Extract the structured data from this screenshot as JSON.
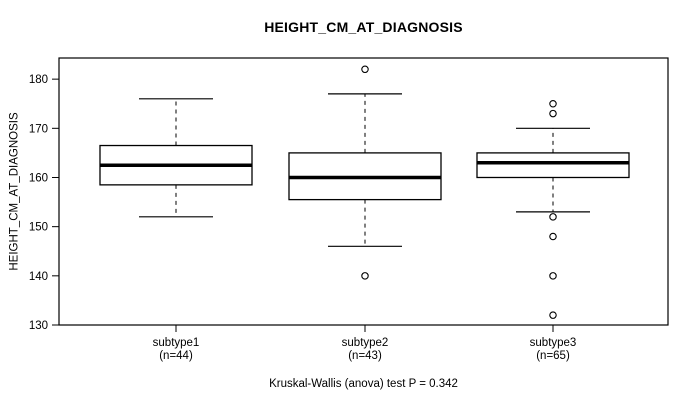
{
  "title": "HEIGHT_CM_AT_DIAGNOSIS",
  "caption": "Kruskal-Wallis (anova) test P = 0.342",
  "y_axis": {
    "label": "HEIGHT_CM_AT_DIAGNOSIS",
    "ticks": [
      130,
      140,
      150,
      160,
      170,
      180
    ]
  },
  "colors": {
    "line": "#000000",
    "box_fill": "#ffffff",
    "background": "#ffffff"
  },
  "chart_data": {
    "type": "boxplot",
    "title": "HEIGHT_CM_AT_DIAGNOSIS",
    "ylabel": "HEIGHT_CM_AT_DIAGNOSIS",
    "xlabel": "",
    "ylim": [
      130,
      184.3
    ],
    "yticks": [
      130,
      140,
      150,
      160,
      170,
      180
    ],
    "grid": false,
    "footnote": "Kruskal-Wallis (anova) test P = 0.342",
    "p_value": 0.342,
    "groups": [
      {
        "label": "subtype1",
        "n_label": "(n=44)",
        "n": 44,
        "whisker_low": 152,
        "q1": 158.5,
        "median": 162.5,
        "q3": 166.5,
        "whisker_high": 176,
        "outliers": []
      },
      {
        "label": "subtype2",
        "n_label": "(n=43)",
        "n": 43,
        "whisker_low": 146,
        "q1": 155.5,
        "median": 160,
        "q3": 165,
        "whisker_high": 177,
        "outliers": [
          182,
          140
        ]
      },
      {
        "label": "subtype3",
        "n_label": "(n=65)",
        "n": 65,
        "whisker_low": 153,
        "q1": 160,
        "median": 163,
        "q3": 165,
        "whisker_high": 170,
        "outliers": [
          175,
          173,
          152,
          148,
          140,
          132
        ]
      }
    ]
  }
}
